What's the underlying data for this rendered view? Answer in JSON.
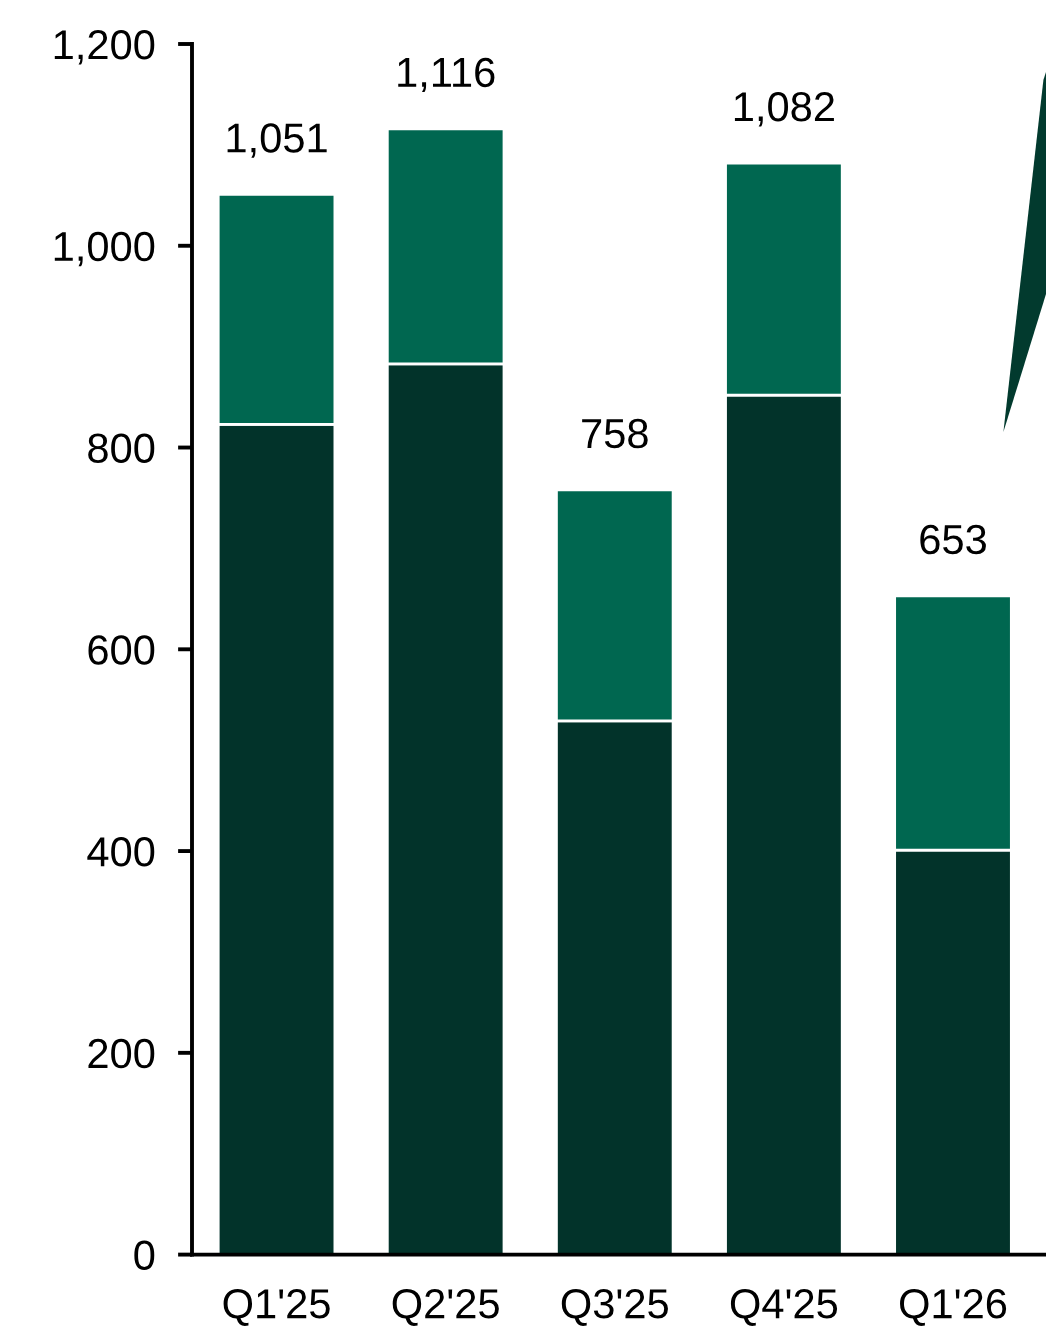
{
  "chart_data": {
    "type": "bar",
    "stacked": true,
    "categories": [
      "Q1'25",
      "Q2'25",
      "Q3'25",
      "Q4'25",
      "Q1'26"
    ],
    "series": [
      {
        "color": "#02332a",
        "values": [
          823,
          883,
          529,
          852,
          401
        ]
      },
      {
        "color": "#006750",
        "values": [
          228,
          233,
          229,
          230,
          252
        ]
      }
    ],
    "totals": [
      "1,051",
      "1,116",
      "758",
      "1,082",
      "653"
    ],
    "ylim": [
      0,
      1200
    ],
    "yticks": [
      {
        "value": 0,
        "label": "0"
      },
      {
        "value": 200,
        "label": "200"
      },
      {
        "value": 400,
        "label": "400"
      },
      {
        "value": 600,
        "label": "600"
      },
      {
        "value": 800,
        "label": "800"
      },
      {
        "value": 1000,
        "label": "1,000"
      },
      {
        "value": 1200,
        "label": "1,200"
      }
    ],
    "grid": false
  }
}
